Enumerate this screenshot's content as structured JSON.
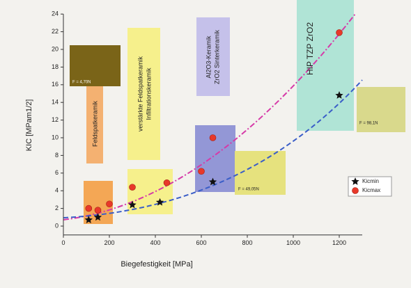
{
  "chart_data": {
    "type": "scatter",
    "x_label": "Biegefestigkeit [MPa]",
    "y_label": "KIC [MPam1/2]",
    "xlim": [
      0,
      1300
    ],
    "xticks": [
      0,
      200,
      400,
      600,
      800,
      1000,
      1200
    ],
    "ylim": [
      -1,
      24
    ],
    "yticks": [
      0,
      2,
      4,
      6,
      8,
      10,
      12,
      14,
      16,
      18,
      20,
      22,
      24
    ],
    "legend": "right",
    "series": [
      {
        "name": "Kicmin",
        "color": "#111111",
        "marker": "star",
        "x": [
          110,
          150,
          300,
          420,
          650,
          1200
        ],
        "values": [
          0.7,
          1.0,
          2.4,
          2.7,
          5.0,
          14.8
        ]
      },
      {
        "name": "Kicmax",
        "color": "#e8382a",
        "marker": "circle",
        "x": [
          110,
          150,
          200,
          300,
          450,
          600,
          650,
          1200
        ],
        "values": [
          2.0,
          1.8,
          2.5,
          4.4,
          4.9,
          6.2,
          10.0,
          21.9
        ]
      }
    ],
    "annotations": [
      "Feldspatkeramik",
      "verstärkte Feldspatkeramik",
      "Infiltrationskeramik",
      "Al2O3-Keramik",
      "ZrO2 Sinterkeramik",
      "HIP TZP ZrO2",
      "F = 4,70N",
      "F = 49,05N",
      "F = 98,1N"
    ]
  }
}
